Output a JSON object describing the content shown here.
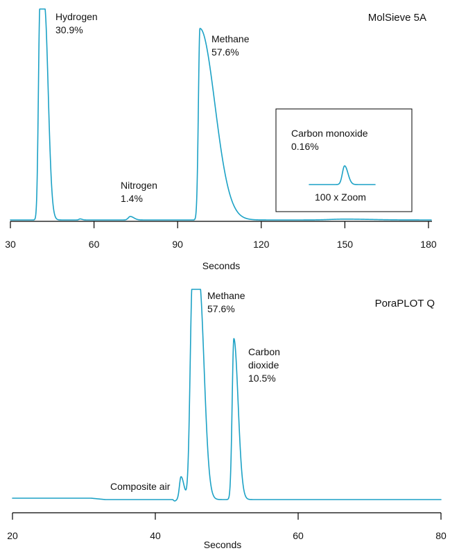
{
  "colors": {
    "trace": "#1ba1c5",
    "axis": "#000000",
    "text": "#111111"
  },
  "chart_data": [
    {
      "type": "line",
      "title": "MolSieve 5A",
      "xlabel": "Seconds",
      "ylabel": "",
      "xlim": [
        30,
        181
      ],
      "xticks": [
        30,
        60,
        90,
        120,
        150,
        180
      ],
      "grid": false,
      "peaks": [
        {
          "label_lines": [
            "Hydrogen",
            "30.9%"
          ],
          "x": 41.5,
          "percent": 30.9,
          "clipped": true
        },
        {
          "label_lines": [
            "Nitrogen",
            "1.4%"
          ],
          "x": 73,
          "percent": 1.4,
          "clipped": false
        },
        {
          "label_lines": [
            "Methane",
            "57.6%"
          ],
          "x": 98,
          "percent": 57.6,
          "clipped": false
        }
      ],
      "inset": {
        "label_lines": [
          "Carbon monoxide",
          "0.16%"
        ],
        "zoom_label": "100 x Zoom",
        "percent": 0.16,
        "zoom_factor": 100
      }
    },
    {
      "type": "line",
      "title": "PoraPLOT Q",
      "xlabel": "Seconds",
      "ylabel": "",
      "xlim": [
        20,
        80
      ],
      "xticks": [
        20,
        40,
        60,
        80
      ],
      "grid": false,
      "peaks": [
        {
          "label_lines": [
            "Composite air"
          ],
          "x": 43.6,
          "percent": null,
          "clipped": false
        },
        {
          "label_lines": [
            "Methane",
            "57.6%"
          ],
          "x": 45.6,
          "percent": 57.6,
          "clipped": true
        },
        {
          "label_lines": [
            "Carbon",
            "dioxide",
            "10.5%"
          ],
          "x": 51.0,
          "percent": 10.5,
          "clipped": false
        }
      ]
    }
  ]
}
